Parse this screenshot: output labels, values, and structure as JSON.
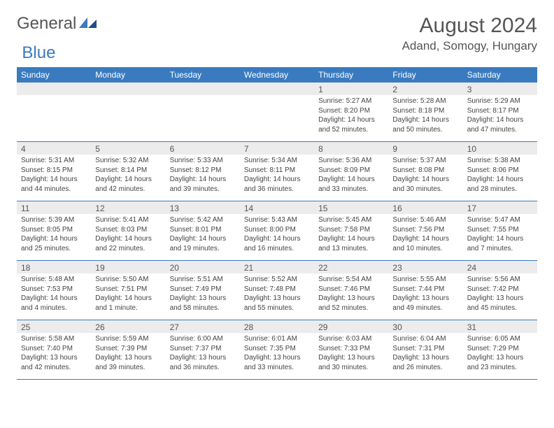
{
  "logo": {
    "text1": "General",
    "text2": "Blue"
  },
  "title": "August 2024",
  "location": "Adand, Somogy, Hungary",
  "colors": {
    "header_bg": "#3a7bbf",
    "band_bg": "#ececec",
    "text": "#555555",
    "border": "#3a7bbf"
  },
  "day_names": [
    "Sunday",
    "Monday",
    "Tuesday",
    "Wednesday",
    "Thursday",
    "Friday",
    "Saturday"
  ],
  "weeks": [
    [
      {
        "n": "",
        "sr": "",
        "ss": "",
        "dl": ""
      },
      {
        "n": "",
        "sr": "",
        "ss": "",
        "dl": ""
      },
      {
        "n": "",
        "sr": "",
        "ss": "",
        "dl": ""
      },
      {
        "n": "",
        "sr": "",
        "ss": "",
        "dl": ""
      },
      {
        "n": "1",
        "sr": "Sunrise: 5:27 AM",
        "ss": "Sunset: 8:20 PM",
        "dl": "Daylight: 14 hours and 52 minutes."
      },
      {
        "n": "2",
        "sr": "Sunrise: 5:28 AM",
        "ss": "Sunset: 8:18 PM",
        "dl": "Daylight: 14 hours and 50 minutes."
      },
      {
        "n": "3",
        "sr": "Sunrise: 5:29 AM",
        "ss": "Sunset: 8:17 PM",
        "dl": "Daylight: 14 hours and 47 minutes."
      }
    ],
    [
      {
        "n": "4",
        "sr": "Sunrise: 5:31 AM",
        "ss": "Sunset: 8:15 PM",
        "dl": "Daylight: 14 hours and 44 minutes."
      },
      {
        "n": "5",
        "sr": "Sunrise: 5:32 AM",
        "ss": "Sunset: 8:14 PM",
        "dl": "Daylight: 14 hours and 42 minutes."
      },
      {
        "n": "6",
        "sr": "Sunrise: 5:33 AM",
        "ss": "Sunset: 8:12 PM",
        "dl": "Daylight: 14 hours and 39 minutes."
      },
      {
        "n": "7",
        "sr": "Sunrise: 5:34 AM",
        "ss": "Sunset: 8:11 PM",
        "dl": "Daylight: 14 hours and 36 minutes."
      },
      {
        "n": "8",
        "sr": "Sunrise: 5:36 AM",
        "ss": "Sunset: 8:09 PM",
        "dl": "Daylight: 14 hours and 33 minutes."
      },
      {
        "n": "9",
        "sr": "Sunrise: 5:37 AM",
        "ss": "Sunset: 8:08 PM",
        "dl": "Daylight: 14 hours and 30 minutes."
      },
      {
        "n": "10",
        "sr": "Sunrise: 5:38 AM",
        "ss": "Sunset: 8:06 PM",
        "dl": "Daylight: 14 hours and 28 minutes."
      }
    ],
    [
      {
        "n": "11",
        "sr": "Sunrise: 5:39 AM",
        "ss": "Sunset: 8:05 PM",
        "dl": "Daylight: 14 hours and 25 minutes."
      },
      {
        "n": "12",
        "sr": "Sunrise: 5:41 AM",
        "ss": "Sunset: 8:03 PM",
        "dl": "Daylight: 14 hours and 22 minutes."
      },
      {
        "n": "13",
        "sr": "Sunrise: 5:42 AM",
        "ss": "Sunset: 8:01 PM",
        "dl": "Daylight: 14 hours and 19 minutes."
      },
      {
        "n": "14",
        "sr": "Sunrise: 5:43 AM",
        "ss": "Sunset: 8:00 PM",
        "dl": "Daylight: 14 hours and 16 minutes."
      },
      {
        "n": "15",
        "sr": "Sunrise: 5:45 AM",
        "ss": "Sunset: 7:58 PM",
        "dl": "Daylight: 14 hours and 13 minutes."
      },
      {
        "n": "16",
        "sr": "Sunrise: 5:46 AM",
        "ss": "Sunset: 7:56 PM",
        "dl": "Daylight: 14 hours and 10 minutes."
      },
      {
        "n": "17",
        "sr": "Sunrise: 5:47 AM",
        "ss": "Sunset: 7:55 PM",
        "dl": "Daylight: 14 hours and 7 minutes."
      }
    ],
    [
      {
        "n": "18",
        "sr": "Sunrise: 5:48 AM",
        "ss": "Sunset: 7:53 PM",
        "dl": "Daylight: 14 hours and 4 minutes."
      },
      {
        "n": "19",
        "sr": "Sunrise: 5:50 AM",
        "ss": "Sunset: 7:51 PM",
        "dl": "Daylight: 14 hours and 1 minute."
      },
      {
        "n": "20",
        "sr": "Sunrise: 5:51 AM",
        "ss": "Sunset: 7:49 PM",
        "dl": "Daylight: 13 hours and 58 minutes."
      },
      {
        "n": "21",
        "sr": "Sunrise: 5:52 AM",
        "ss": "Sunset: 7:48 PM",
        "dl": "Daylight: 13 hours and 55 minutes."
      },
      {
        "n": "22",
        "sr": "Sunrise: 5:54 AM",
        "ss": "Sunset: 7:46 PM",
        "dl": "Daylight: 13 hours and 52 minutes."
      },
      {
        "n": "23",
        "sr": "Sunrise: 5:55 AM",
        "ss": "Sunset: 7:44 PM",
        "dl": "Daylight: 13 hours and 49 minutes."
      },
      {
        "n": "24",
        "sr": "Sunrise: 5:56 AM",
        "ss": "Sunset: 7:42 PM",
        "dl": "Daylight: 13 hours and 45 minutes."
      }
    ],
    [
      {
        "n": "25",
        "sr": "Sunrise: 5:58 AM",
        "ss": "Sunset: 7:40 PM",
        "dl": "Daylight: 13 hours and 42 minutes."
      },
      {
        "n": "26",
        "sr": "Sunrise: 5:59 AM",
        "ss": "Sunset: 7:39 PM",
        "dl": "Daylight: 13 hours and 39 minutes."
      },
      {
        "n": "27",
        "sr": "Sunrise: 6:00 AM",
        "ss": "Sunset: 7:37 PM",
        "dl": "Daylight: 13 hours and 36 minutes."
      },
      {
        "n": "28",
        "sr": "Sunrise: 6:01 AM",
        "ss": "Sunset: 7:35 PM",
        "dl": "Daylight: 13 hours and 33 minutes."
      },
      {
        "n": "29",
        "sr": "Sunrise: 6:03 AM",
        "ss": "Sunset: 7:33 PM",
        "dl": "Daylight: 13 hours and 30 minutes."
      },
      {
        "n": "30",
        "sr": "Sunrise: 6:04 AM",
        "ss": "Sunset: 7:31 PM",
        "dl": "Daylight: 13 hours and 26 minutes."
      },
      {
        "n": "31",
        "sr": "Sunrise: 6:05 AM",
        "ss": "Sunset: 7:29 PM",
        "dl": "Daylight: 13 hours and 23 minutes."
      }
    ]
  ]
}
